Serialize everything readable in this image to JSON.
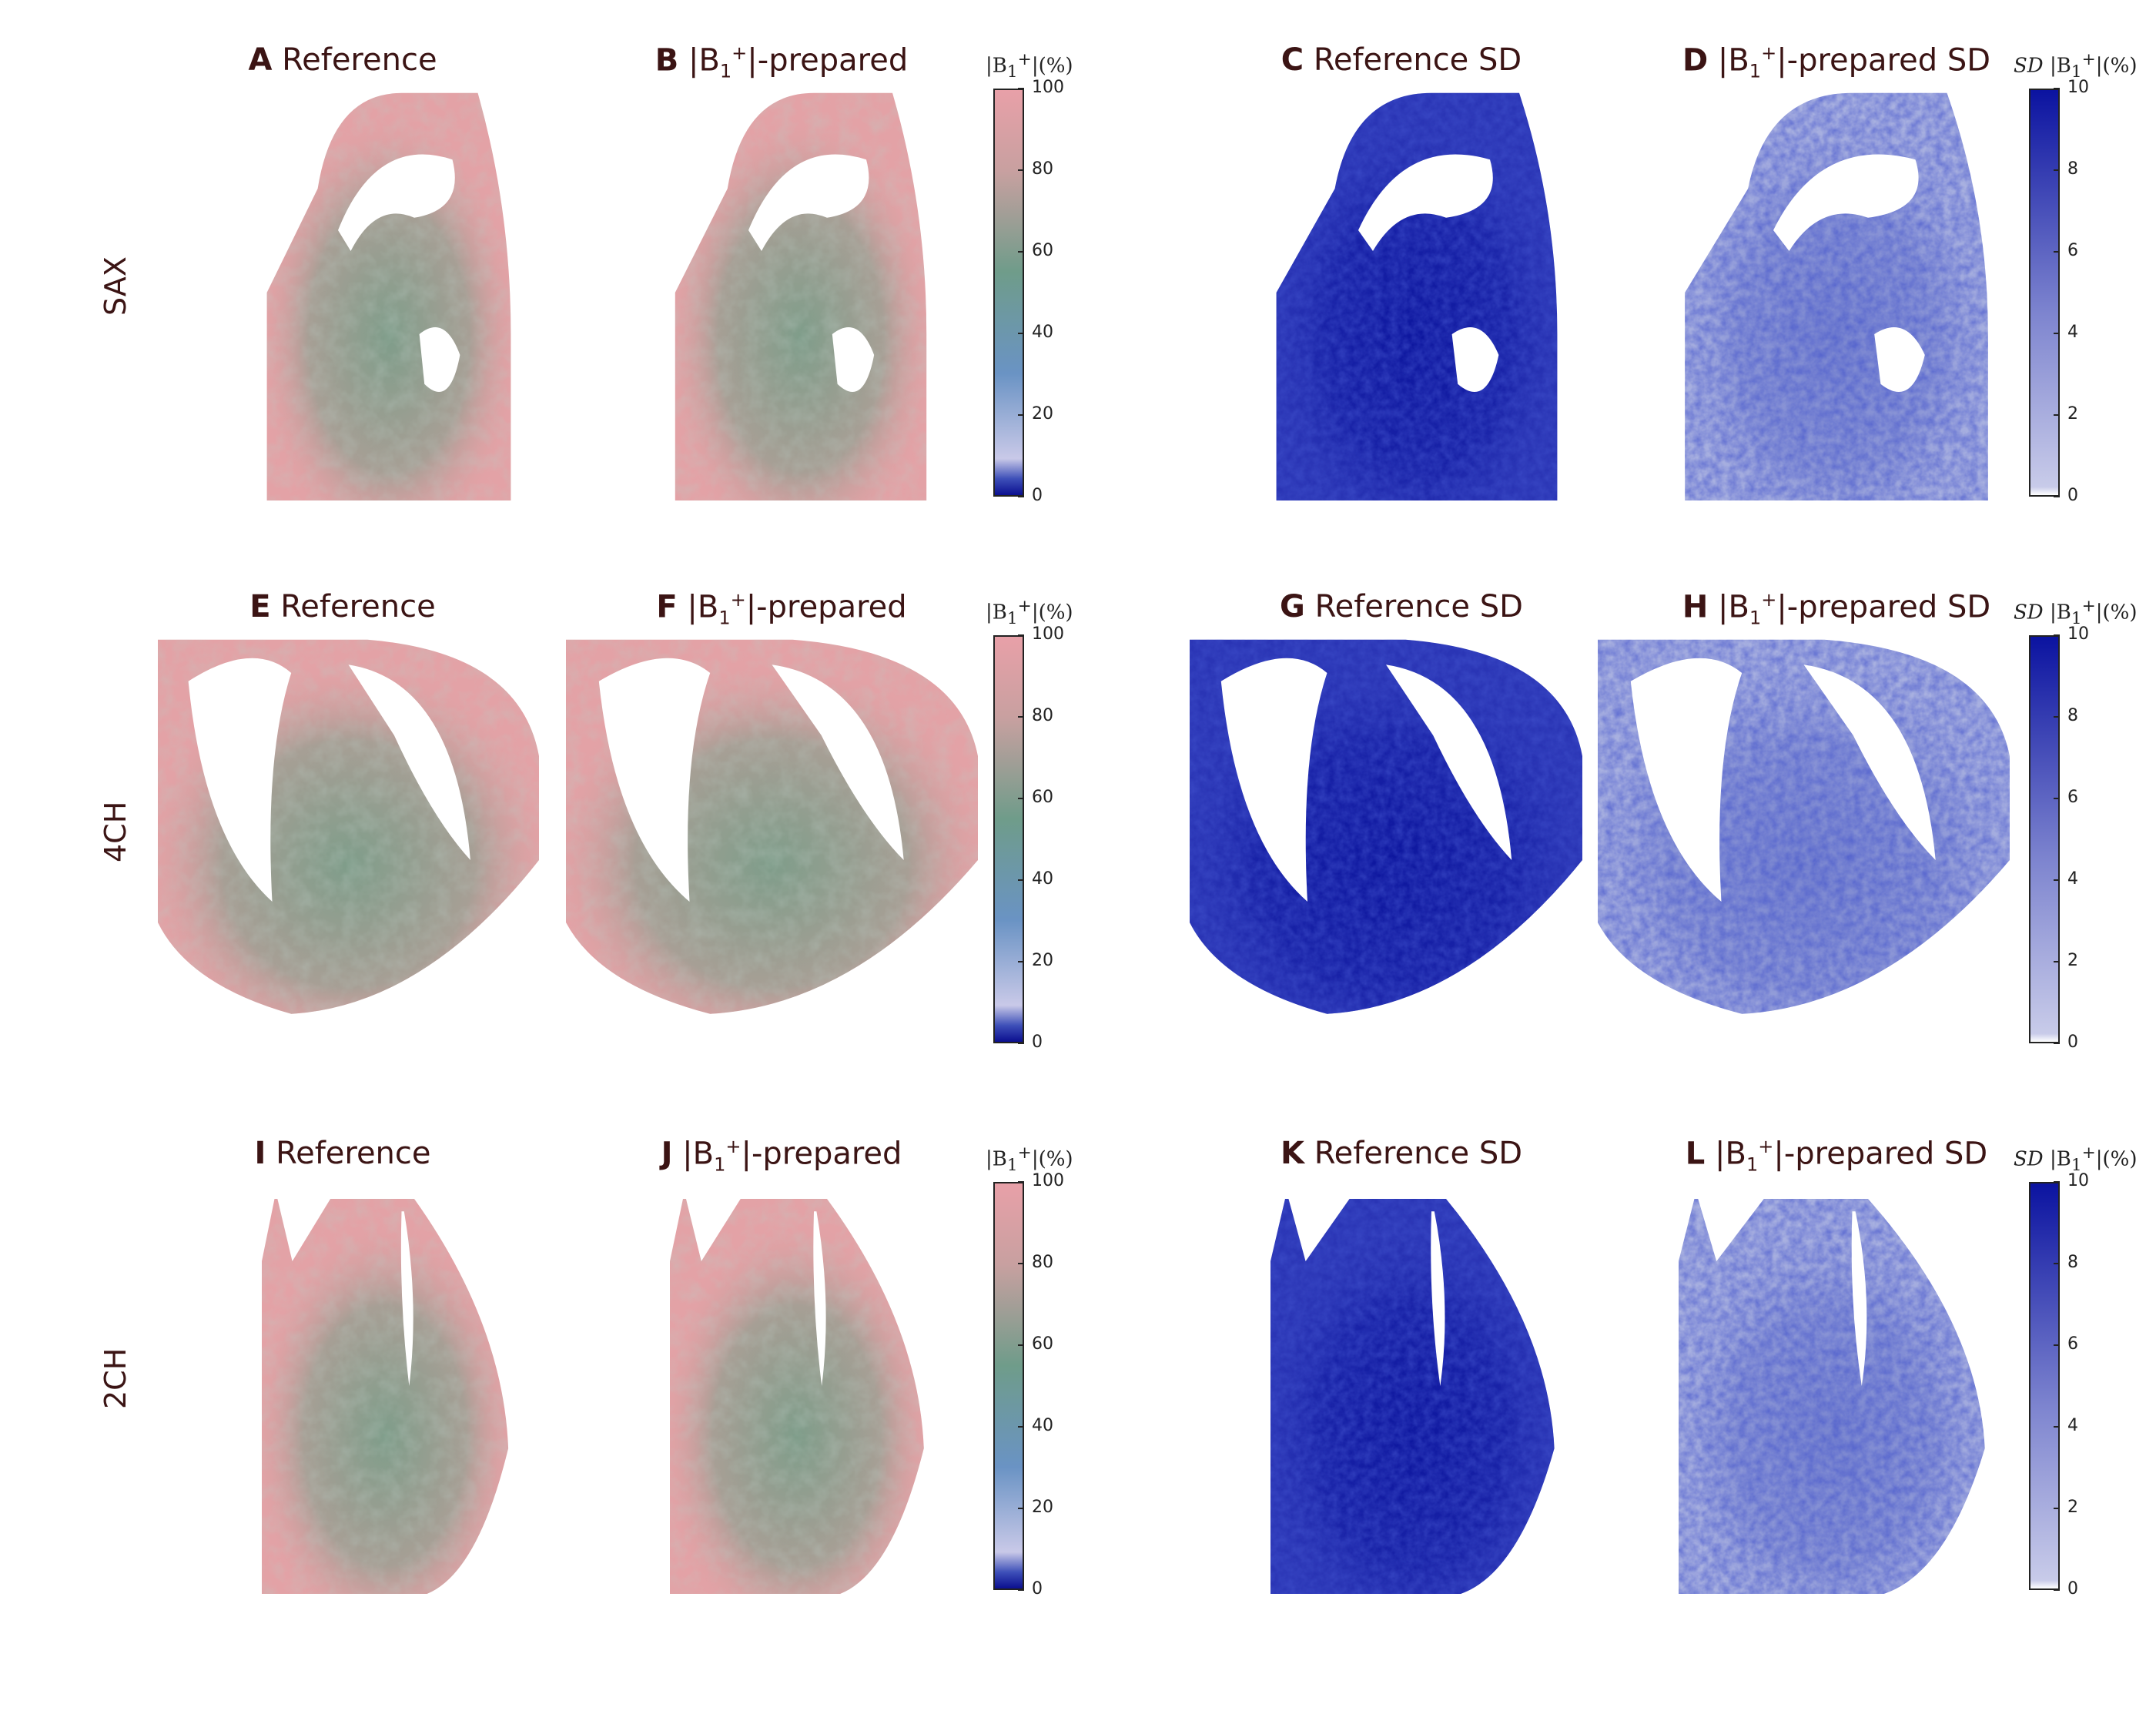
{
  "rows": [
    {
      "label": "SAX",
      "panels": [
        {
          "letter": "A",
          "title": "Reference",
          "type": "b1"
        },
        {
          "letter": "B",
          "title_pre": "|B",
          "title_sub": "1",
          "title_sup": "+",
          "title_post": "|-prepared",
          "type": "b1"
        },
        {
          "letter": "C",
          "title": "Reference SD",
          "type": "sd"
        },
        {
          "letter": "D",
          "title_pre": "|B",
          "title_sub": "1",
          "title_sup": "+",
          "title_post": "|-prepared SD",
          "type": "sd"
        }
      ]
    },
    {
      "label": "4CH",
      "panels": [
        {
          "letter": "E",
          "title": "Reference",
          "type": "b1"
        },
        {
          "letter": "F",
          "title_pre": "|B",
          "title_sub": "1",
          "title_sup": "+",
          "title_post": "|-prepared",
          "type": "b1"
        },
        {
          "letter": "G",
          "title": "Reference SD",
          "type": "sd"
        },
        {
          "letter": "H",
          "title_pre": "|B",
          "title_sub": "1",
          "title_sup": "+",
          "title_post": "|-prepared SD",
          "type": "sd"
        }
      ]
    },
    {
      "label": "2CH",
      "panels": [
        {
          "letter": "I",
          "title": "Reference",
          "type": "b1"
        },
        {
          "letter": "J",
          "title_pre": "|B",
          "title_sub": "1",
          "title_sup": "+",
          "title_post": "|-prepared",
          "type": "b1"
        },
        {
          "letter": "K",
          "title": "Reference SD",
          "type": "sd"
        },
        {
          "letter": "L",
          "title_pre": "|B",
          "title_sub": "1",
          "title_sup": "+",
          "title_post": "|-prepared SD",
          "type": "sd"
        }
      ]
    }
  ],
  "colorbars": {
    "b1": {
      "title_pre": "|B",
      "title_sub": "1",
      "title_sup": "+",
      "title_post": "|(%)",
      "ticks": [
        "100",
        "80",
        "60",
        "40",
        "20",
        "0"
      ],
      "range": [
        0,
        100
      ],
      "colors": [
        "#0b0f8f",
        "#c9c9e8",
        "#6a93c4",
        "#6f9c8a",
        "#e8a0a8"
      ]
    },
    "sd": {
      "title_sd": "SD",
      "title_pre": "|B",
      "title_sub": "1",
      "title_sup": "+",
      "title_post": "|(%)",
      "ticks": [
        "10",
        "8",
        "6",
        "4",
        "2",
        "0"
      ],
      "range": [
        0,
        10
      ],
      "colors": [
        "#ffffff",
        "#c8cbe9",
        "#0b13a0"
      ]
    }
  }
}
